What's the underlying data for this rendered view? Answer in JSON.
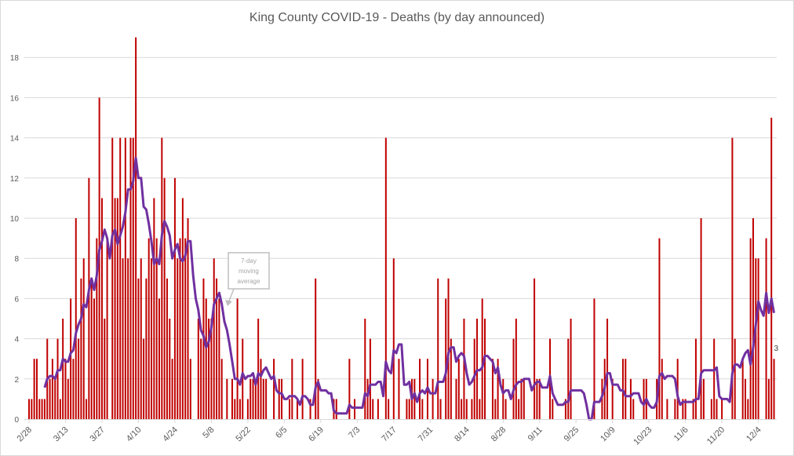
{
  "chart_data": {
    "type": "bar",
    "title": "King County COVID-19 - Deaths (by day announced)",
    "xlabel": "",
    "ylabel": "",
    "ylim": [
      0,
      19
    ],
    "y_ticks": [
      0,
      2,
      4,
      6,
      8,
      10,
      12,
      14,
      16,
      18
    ],
    "grid": true,
    "x_tick_labels": [
      {
        "day": 0,
        "label": "2/28"
      },
      {
        "day": 14,
        "label": "3/13"
      },
      {
        "day": 28,
        "label": "3/27"
      },
      {
        "day": 42,
        "label": "4/10"
      },
      {
        "day": 56,
        "label": "4/24"
      },
      {
        "day": 70,
        "label": "5/8"
      },
      {
        "day": 84,
        "label": "5/22"
      },
      {
        "day": 98,
        "label": "6/5"
      },
      {
        "day": 112,
        "label": "6/19"
      },
      {
        "day": 126,
        "label": "7/3"
      },
      {
        "day": 140,
        "label": "7/17"
      },
      {
        "day": 154,
        "label": "7/31"
      },
      {
        "day": 168,
        "label": "8/14"
      },
      {
        "day": 182,
        "label": "8/28"
      },
      {
        "day": 196,
        "label": "9/11"
      },
      {
        "day": 210,
        "label": "9/25"
      },
      {
        "day": 224,
        "label": "10/9"
      },
      {
        "day": 238,
        "label": "10/23"
      },
      {
        "day": 252,
        "label": "11/6"
      },
      {
        "day": 266,
        "label": "11/20"
      },
      {
        "day": 280,
        "label": "12/4"
      }
    ],
    "series": [
      {
        "name": "Deaths (by day announced)",
        "type": "bar",
        "color": "#c00000",
        "values": [
          1,
          1,
          3,
          3,
          1,
          1,
          1,
          4,
          2,
          3,
          2,
          4,
          1,
          5,
          3,
          2,
          6,
          3,
          10,
          4,
          7,
          8,
          1,
          12,
          7,
          6,
          9,
          16,
          11,
          5,
          9,
          0,
          14,
          11,
          11,
          14,
          8,
          14,
          8,
          14,
          14,
          19,
          7,
          8,
          4,
          7,
          9,
          8,
          11,
          9,
          6,
          14,
          12,
          7,
          5,
          3,
          12,
          8,
          9,
          11,
          9,
          10,
          3,
          0,
          0,
          5,
          4,
          7,
          6,
          5,
          5,
          8,
          7,
          6,
          3,
          0,
          2,
          0,
          2,
          1,
          6,
          1,
          4,
          0,
          1,
          2,
          2,
          2,
          5,
          3,
          2,
          2,
          0,
          0,
          3,
          0,
          2,
          2,
          0,
          0,
          1,
          3,
          0,
          1,
          0,
          3,
          0,
          0,
          1,
          0,
          7,
          2,
          0,
          0,
          0,
          0,
          0,
          1,
          1,
          0,
          0,
          0,
          0,
          3,
          0,
          1,
          0,
          0,
          0,
          5,
          2,
          4,
          1,
          0,
          1,
          0,
          0,
          14,
          1,
          0,
          8,
          0,
          3,
          0,
          0,
          1,
          1,
          2,
          2,
          0,
          3,
          1,
          0,
          3,
          0,
          2,
          0,
          7,
          1,
          0,
          6,
          7,
          4,
          0,
          2,
          3,
          1,
          5,
          1,
          0,
          1,
          4,
          5,
          1,
          6,
          5,
          0,
          0,
          3,
          1,
          3,
          0,
          2,
          1,
          0,
          0,
          4,
          5,
          1,
          2,
          2,
          0,
          0,
          0,
          7,
          2,
          2,
          0,
          0,
          0,
          4,
          1,
          0,
          0,
          0,
          0,
          1,
          4,
          5,
          0,
          0,
          0,
          0,
          0,
          0,
          0,
          0,
          6,
          0,
          0,
          2,
          3,
          5,
          0,
          2,
          0,
          0,
          0,
          3,
          3,
          0,
          2,
          1,
          0,
          0,
          0,
          2,
          2,
          0,
          0,
          0,
          2,
          9,
          3,
          0,
          1,
          0,
          0,
          1,
          3,
          0,
          1,
          1,
          0,
          0,
          1,
          4,
          0,
          10,
          2,
          0,
          0,
          1,
          4,
          1,
          0,
          1,
          0,
          0,
          0,
          14,
          4,
          0,
          0,
          3,
          2,
          1,
          9,
          10,
          8,
          8,
          0,
          0,
          9,
          2,
          15,
          3
        ]
      },
      {
        "name": "7-day moving average",
        "type": "line",
        "color": "#7030a0",
        "window": 7
      }
    ],
    "annotations": [
      {
        "text_lines": [
          "7-day",
          "moving",
          "average"
        ],
        "points_to": "7-day moving average line"
      }
    ],
    "last_value_label": "3"
  }
}
